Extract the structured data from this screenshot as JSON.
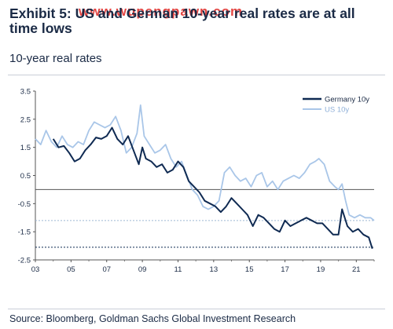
{
  "watermark": "www.wupengpawn.com",
  "title": "Exhibit 5: US and German 10-year real rates are at all time lows",
  "subtitle": "10-year real rates",
  "source": "Source: Bloomberg, Goldman Sachs Global Investment Research",
  "colors": {
    "germany": "#0f2a52",
    "us": "#a9c6e8",
    "zero_line": "#555555",
    "dotted_us": "#9fb7d3",
    "dotted_germany": "#0f2a52"
  },
  "chart_data": {
    "type": "line",
    "x_tick_labels": [
      "03",
      "05",
      "07",
      "09",
      "11",
      "13",
      "15",
      "17",
      "19",
      "21"
    ],
    "x_ticks": [
      2003,
      2005,
      2007,
      2009,
      2011,
      2013,
      2015,
      2017,
      2019,
      2021
    ],
    "xlim": [
      2003,
      2022
    ],
    "y_tick_labels": [
      "3.5",
      "2.5",
      "1.5",
      "0.5",
      "-0.5",
      "-1.5",
      "-2.5"
    ],
    "y_ticks": [
      3.5,
      2.5,
      1.5,
      0.5,
      -0.5,
      -1.5,
      -2.5
    ],
    "ylim": [
      -2.5,
      3.5
    ],
    "legend_position": "top-right",
    "reference_lines": [
      {
        "y": 0,
        "style": "solid"
      },
      {
        "y": -1.1,
        "style": "dotted",
        "series": "US 10y"
      },
      {
        "y": -2.05,
        "style": "dotted",
        "series": "Germany 10y"
      }
    ],
    "series": [
      {
        "name": "Germany 10y",
        "x": [
          2004.0,
          2004.3,
          2004.6,
          2004.9,
          2005.2,
          2005.5,
          2005.8,
          2006.1,
          2006.4,
          2006.7,
          2007.0,
          2007.3,
          2007.6,
          2007.9,
          2008.2,
          2008.5,
          2008.8,
          2009.0,
          2009.2,
          2009.5,
          2009.8,
          2010.1,
          2010.4,
          2010.7,
          2011.0,
          2011.3,
          2011.6,
          2011.9,
          2012.2,
          2012.5,
          2012.8,
          2013.1,
          2013.4,
          2013.7,
          2014.0,
          2014.3,
          2014.6,
          2014.9,
          2015.2,
          2015.5,
          2015.8,
          2016.1,
          2016.4,
          2016.7,
          2017.0,
          2017.3,
          2017.6,
          2017.9,
          2018.2,
          2018.5,
          2018.8,
          2019.1,
          2019.4,
          2019.7,
          2020.0,
          2020.2,
          2020.5,
          2020.8,
          2021.1,
          2021.4,
          2021.7,
          2021.9
        ],
        "values": [
          1.8,
          1.5,
          1.55,
          1.3,
          1.0,
          1.1,
          1.4,
          1.6,
          1.85,
          1.8,
          1.9,
          2.2,
          1.8,
          1.6,
          1.9,
          1.4,
          0.9,
          1.5,
          1.1,
          1.0,
          0.8,
          0.9,
          0.6,
          0.7,
          1.0,
          0.8,
          0.3,
          0.1,
          -0.1,
          -0.4,
          -0.5,
          -0.6,
          -0.8,
          -0.6,
          -0.3,
          -0.5,
          -0.7,
          -0.9,
          -1.3,
          -0.9,
          -1.0,
          -1.2,
          -1.4,
          -1.5,
          -1.1,
          -1.3,
          -1.2,
          -1.1,
          -1.0,
          -1.1,
          -1.2,
          -1.2,
          -1.4,
          -1.6,
          -1.6,
          -0.7,
          -1.3,
          -1.5,
          -1.4,
          -1.6,
          -1.7,
          -2.1
        ]
      },
      {
        "name": "US 10y",
        "x": [
          2003.0,
          2003.3,
          2003.6,
          2003.9,
          2004.2,
          2004.5,
          2004.8,
          2005.1,
          2005.4,
          2005.7,
          2006.0,
          2006.3,
          2006.6,
          2006.9,
          2007.2,
          2007.5,
          2007.8,
          2008.1,
          2008.4,
          2008.7,
          2008.9,
          2009.1,
          2009.4,
          2009.7,
          2010.0,
          2010.3,
          2010.6,
          2010.9,
          2011.2,
          2011.5,
          2011.8,
          2012.1,
          2012.4,
          2012.7,
          2013.0,
          2013.3,
          2013.6,
          2013.9,
          2014.2,
          2014.5,
          2014.8,
          2015.1,
          2015.4,
          2015.7,
          2016.0,
          2016.3,
          2016.6,
          2016.9,
          2017.2,
          2017.5,
          2017.8,
          2018.1,
          2018.4,
          2018.7,
          2018.9,
          2019.2,
          2019.5,
          2019.8,
          2020.0,
          2020.2,
          2020.4,
          2020.6,
          2020.9,
          2021.2,
          2021.5,
          2021.8,
          2022.0
        ],
        "values": [
          1.8,
          1.6,
          2.1,
          1.7,
          1.5,
          1.9,
          1.6,
          1.5,
          1.7,
          1.6,
          2.1,
          2.4,
          2.3,
          2.2,
          2.3,
          2.6,
          2.1,
          1.3,
          1.5,
          2.0,
          3.0,
          1.9,
          1.6,
          1.3,
          1.4,
          1.6,
          1.1,
          0.8,
          1.0,
          0.5,
          0.0,
          -0.2,
          -0.6,
          -0.7,
          -0.6,
          -0.4,
          0.6,
          0.8,
          0.5,
          0.3,
          0.4,
          0.1,
          0.5,
          0.6,
          0.1,
          0.3,
          0.0,
          0.3,
          0.4,
          0.5,
          0.4,
          0.6,
          0.9,
          1.0,
          1.1,
          0.9,
          0.3,
          0.1,
          0.0,
          0.2,
          -0.4,
          -0.9,
          -1.0,
          -0.9,
          -1.0,
          -1.0,
          -1.1
        ]
      }
    ]
  }
}
